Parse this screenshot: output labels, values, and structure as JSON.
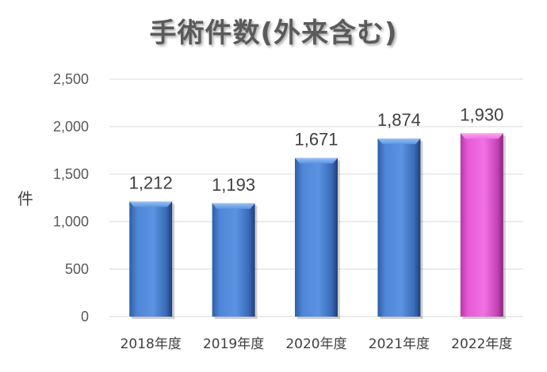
{
  "chart_data": {
    "type": "bar",
    "title": "手術件数(外来含む)",
    "ylabel": "件",
    "xlabel": "",
    "categories": [
      "2018年度",
      "2019年度",
      "2020年度",
      "2021年度",
      "2022年度"
    ],
    "values": [
      1212,
      1193,
      1671,
      1874,
      1930
    ],
    "value_labels": [
      "1,212",
      "1,193",
      "1,671",
      "1,874",
      "1,930"
    ],
    "ylim": [
      0,
      2500
    ],
    "yticks": [
      0,
      500,
      1000,
      1500,
      2000,
      2500
    ],
    "ytick_labels": [
      "0",
      "500",
      "1,000",
      "1,500",
      "2,000",
      "2,500"
    ],
    "grid": true,
    "legend": false,
    "bar_colors": [
      "#4f86d8",
      "#4f86d8",
      "#4f86d8",
      "#4f86d8",
      "#e85ad8"
    ]
  }
}
